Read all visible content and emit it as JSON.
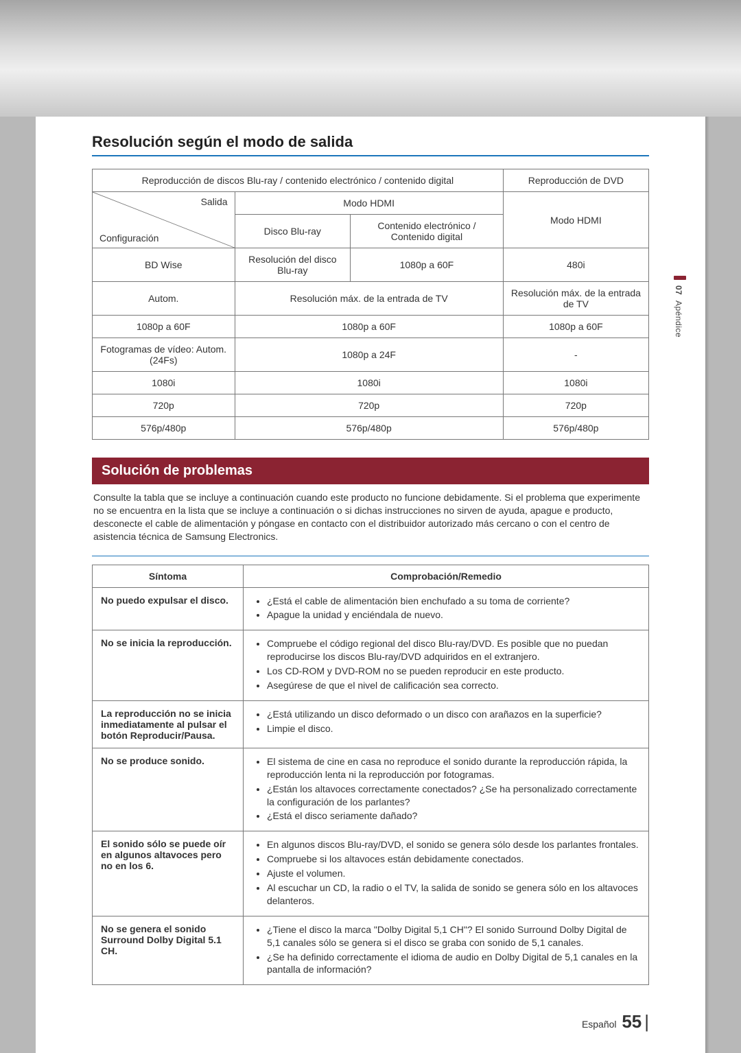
{
  "sidebar": {
    "chapter_num": "07",
    "chapter_label": "Apéndice"
  },
  "section1_title": "Resolución según el modo de salida",
  "res_table": {
    "h_blu": "Reproducción de discos Blu-ray / contenido electrónico / contenido digital",
    "h_dvd": "Reproducción de DVD",
    "h_hdmi": "Modo HDMI",
    "h_disc": "Disco Blu-ray",
    "h_econtent": "Contenido electrónico / Contenido digital",
    "h_hdmi2": "Modo HDMI",
    "h_salida": "Salida",
    "h_config": "Configuración",
    "rows": [
      {
        "cfg": "BD Wise",
        "c1": "Resolución del disco Blu-ray",
        "c2": "1080p a 60F",
        "c3": "480i"
      },
      {
        "cfg": "Autom.",
        "c12": "Resolución máx. de la entrada de TV",
        "c3": "Resolución máx. de la entrada de TV"
      },
      {
        "cfg": "1080p a 60F",
        "c12": "1080p a 60F",
        "c3": "1080p a 60F"
      },
      {
        "cfg": "Fotogramas de vídeo: Autom. (24Fs)",
        "c12": "1080p a 24F",
        "c3": "-"
      },
      {
        "cfg": "1080i",
        "c12": "1080i",
        "c3": "1080i"
      },
      {
        "cfg": "720p",
        "c12": "720p",
        "c3": "720p"
      },
      {
        "cfg": "576p/480p",
        "c12": "576p/480p",
        "c3": "576p/480p"
      }
    ]
  },
  "band_title": "Solución de problemas",
  "intro_text": "Consulte la tabla que se incluye a continuación cuando este producto no funcione debidamente. Si el problema que experimente no se encuentra en la lista que se incluye a continuación o si dichas instrucciones no sirven de ayuda, apague e producto, desconecte el cable de alimentación y póngase en contacto con el distribuidor autorizado más cercano o con el centro de asistencia técnica de Samsung Electronics.",
  "trouble": {
    "h_sym": "Síntoma",
    "h_rem": "Comprobación/Remedio",
    "rows": [
      {
        "sym": "No puedo expulsar el disco.",
        "items": [
          "¿Está el cable de alimentación bien enchufado a su toma de corriente?",
          "Apague la unidad y enciéndala de nuevo."
        ]
      },
      {
        "sym": "No se inicia la reproducción.",
        "items": [
          "Compruebe el código regional del disco Blu-ray/DVD. Es posible que no puedan reproducirse los discos Blu-ray/DVD adquiridos en el extranjero.",
          "Los CD-ROM y DVD-ROM no se pueden reproducir en este producto.",
          "Asegúrese de que el nivel de calificación sea correcto."
        ]
      },
      {
        "sym": "La reproducción no se inicia inmediatamente al pulsar el botón Reproducir/Pausa.",
        "items": [
          "¿Está utilizando un disco deformado o un disco con arañazos en la superficie?",
          "Limpie el disco."
        ]
      },
      {
        "sym": "No se produce sonido.",
        "items": [
          "El sistema de cine en casa no reproduce el sonido durante la reproducción rápida, la reproducción lenta ni la reproducción por fotogramas.",
          "¿Están los altavoces correctamente conectados? ¿Se ha personalizado correctamente la configuración de los parlantes?",
          "¿Está el disco seriamente dañado?"
        ]
      },
      {
        "sym": "El sonido sólo se puede oír en algunos altavoces pero no en los 6.",
        "items": [
          "En algunos discos Blu-ray/DVD, el sonido se genera sólo desde los parlantes frontales.",
          "Compruebe si los altavoces están debidamente conectados.",
          "Ajuste el volumen.",
          "Al escuchar un CD, la radio o el TV, la salida de sonido se genera sólo en los altavoces delanteros."
        ]
      },
      {
        "sym": "No se genera el sonido Surround Dolby Digital 5.1 CH.",
        "items": [
          "¿Tiene el disco la marca \"Dolby Digital 5,1 CH\"? El sonido Surround Dolby Digital de 5,1 canales sólo se genera si el disco se graba con sonido de 5,1 canales.",
          "¿Se ha definido correctamente el idioma de audio en Dolby Digital de 5,1 canales en la pantalla de información?"
        ]
      }
    ]
  },
  "footer": {
    "lang": "Español",
    "page": "55"
  }
}
